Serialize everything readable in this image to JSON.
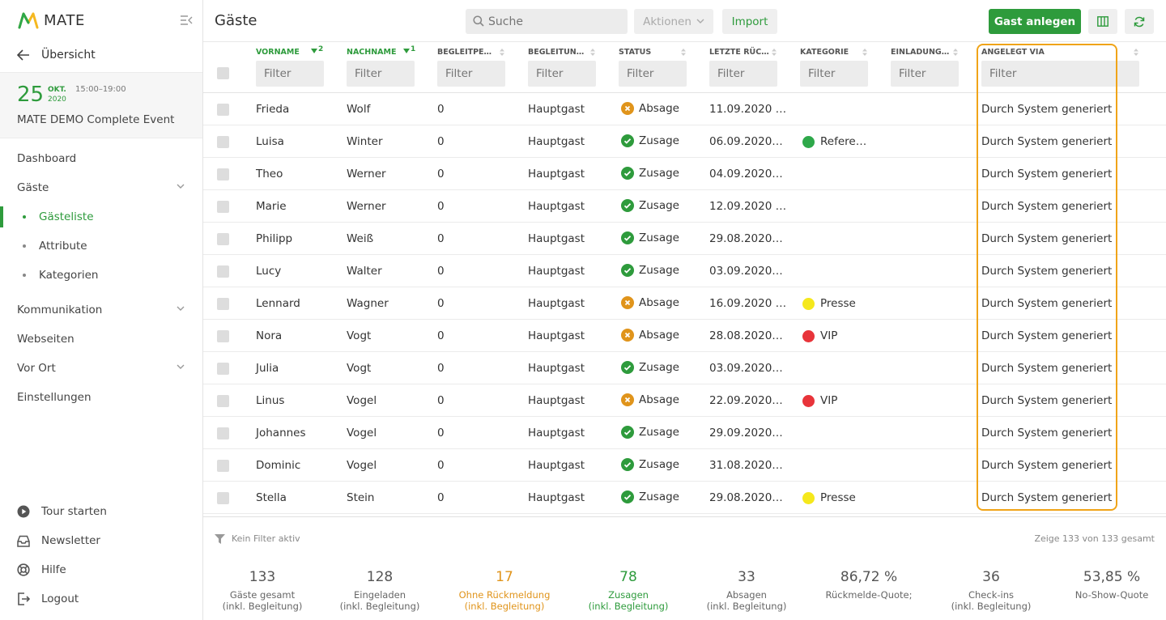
{
  "app": {
    "name": "MATE"
  },
  "sidebar": {
    "back_label": "Übersicht",
    "event": {
      "day": "25",
      "month": "OKT.",
      "year": "2020",
      "time": "15:00–19:00",
      "name": "MATE DEMO Complete Event"
    },
    "nav": [
      {
        "label": "Dashboard"
      },
      {
        "label": "Gäste"
      },
      {
        "label": "Gästeliste"
      },
      {
        "label": "Attribute"
      },
      {
        "label": "Kategorien"
      },
      {
        "label": "Kommunikation"
      },
      {
        "label": "Webseiten"
      },
      {
        "label": "Vor Ort"
      },
      {
        "label": "Einstellungen"
      }
    ],
    "footer": [
      {
        "label": "Tour starten",
        "icon": "play-icon"
      },
      {
        "label": "Newsletter",
        "icon": "inbox-icon"
      },
      {
        "label": "Hilfe",
        "icon": "lifebuoy-icon"
      },
      {
        "label": "Logout",
        "icon": "logout-icon"
      }
    ]
  },
  "header": {
    "title": "Gäste",
    "search_placeholder": "Suche",
    "actions_label": "Aktionen",
    "import_label": "Import",
    "add_guest_label": "Gast anlegen"
  },
  "table": {
    "filter_placeholder": "Filter",
    "columns": [
      {
        "label": "VORNAME",
        "sort_index": "2"
      },
      {
        "label": "NACHNAME",
        "sort_index": "1"
      },
      {
        "label": "BEGLEITPE…"
      },
      {
        "label": "BEGLEITUN…"
      },
      {
        "label": "STATUS"
      },
      {
        "label": "LETZTE RÜC…"
      },
      {
        "label": "KATEGORIE"
      },
      {
        "label": "EINLADUNG…"
      },
      {
        "label": "ANGELEGT VIA"
      }
    ],
    "rows": [
      {
        "vorname": "Frieda",
        "nachname": "Wolf",
        "begleitpersonen": "0",
        "begleitung": "Hauptgast",
        "status": "Absage",
        "letzte": "11.09.2020 …",
        "kategorie": "",
        "kat_color": "",
        "angelegt": "Durch System generiert"
      },
      {
        "vorname": "Luisa",
        "nachname": "Winter",
        "begleitpersonen": "0",
        "begleitung": "Hauptgast",
        "status": "Zusage",
        "letzte": "06.09.2020…",
        "kategorie": "Refere…",
        "kat_color": "#2ea84a",
        "angelegt": "Durch System generiert"
      },
      {
        "vorname": "Theo",
        "nachname": "Werner",
        "begleitpersonen": "0",
        "begleitung": "Hauptgast",
        "status": "Zusage",
        "letzte": "04.09.2020…",
        "kategorie": "",
        "kat_color": "",
        "angelegt": "Durch System generiert"
      },
      {
        "vorname": "Marie",
        "nachname": "Werner",
        "begleitpersonen": "0",
        "begleitung": "Hauptgast",
        "status": "Zusage",
        "letzte": "12.09.2020 …",
        "kategorie": "",
        "kat_color": "",
        "angelegt": "Durch System generiert"
      },
      {
        "vorname": "Philipp",
        "nachname": "Weiß",
        "begleitpersonen": "0",
        "begleitung": "Hauptgast",
        "status": "Zusage",
        "letzte": "29.08.2020…",
        "kategorie": "",
        "kat_color": "",
        "angelegt": "Durch System generiert"
      },
      {
        "vorname": "Lucy",
        "nachname": "Walter",
        "begleitpersonen": "0",
        "begleitung": "Hauptgast",
        "status": "Zusage",
        "letzte": "03.09.2020…",
        "kategorie": "",
        "kat_color": "",
        "angelegt": "Durch System generiert"
      },
      {
        "vorname": "Lennard",
        "nachname": "Wagner",
        "begleitpersonen": "0",
        "begleitung": "Hauptgast",
        "status": "Absage",
        "letzte": "16.09.2020 …",
        "kategorie": "Presse",
        "kat_color": "#f5e81c",
        "angelegt": "Durch System generiert"
      },
      {
        "vorname": "Nora",
        "nachname": "Vogt",
        "begleitpersonen": "0",
        "begleitung": "Hauptgast",
        "status": "Absage",
        "letzte": "28.08.2020…",
        "kategorie": "VIP",
        "kat_color": "#e8343a",
        "angelegt": "Durch System generiert"
      },
      {
        "vorname": "Julia",
        "nachname": "Vogt",
        "begleitpersonen": "0",
        "begleitung": "Hauptgast",
        "status": "Zusage",
        "letzte": "03.09.2020…",
        "kategorie": "",
        "kat_color": "",
        "angelegt": "Durch System generiert"
      },
      {
        "vorname": "Linus",
        "nachname": "Vogel",
        "begleitpersonen": "0",
        "begleitung": "Hauptgast",
        "status": "Absage",
        "letzte": "22.09.2020…",
        "kategorie": "VIP",
        "kat_color": "#e8343a",
        "angelegt": "Durch System generiert"
      },
      {
        "vorname": "Johannes",
        "nachname": "Vogel",
        "begleitpersonen": "0",
        "begleitung": "Hauptgast",
        "status": "Zusage",
        "letzte": "29.09.2020…",
        "kategorie": "",
        "kat_color": "",
        "angelegt": "Durch System generiert"
      },
      {
        "vorname": "Dominic",
        "nachname": "Vogel",
        "begleitpersonen": "0",
        "begleitung": "Hauptgast",
        "status": "Zusage",
        "letzte": "31.08.2020…",
        "kategorie": "",
        "kat_color": "",
        "angelegt": "Durch System generiert"
      },
      {
        "vorname": "Stella",
        "nachname": "Stein",
        "begleitpersonen": "0",
        "begleitung": "Hauptgast",
        "status": "Zusage",
        "letzte": "29.08.2020…",
        "kategorie": "Presse",
        "kat_color": "#f5e81c",
        "angelegt": "Durch System generiert"
      }
    ]
  },
  "footer": {
    "filter_status": "Kein Filter aktiv",
    "total_label": "Zeige 133 von 133 gesamt",
    "stats": [
      {
        "value": "133",
        "label1": "Gäste gesamt",
        "label2": "(inkl. Begleitung)",
        "tone": ""
      },
      {
        "value": "128",
        "label1": "Eingeladen",
        "label2": "(inkl. Begleitung)",
        "tone": ""
      },
      {
        "value": "17",
        "label1": "Ohne Rückmeldung",
        "label2": "(inkl. Begleitung)",
        "tone": "orange"
      },
      {
        "value": "78",
        "label1": "Zusagen",
        "label2": "(inkl. Begleitung)",
        "tone": "green"
      },
      {
        "value": "33",
        "label1": "Absagen",
        "label2": "(inkl. Begleitung)",
        "tone": ""
      },
      {
        "value": "86,72 %",
        "label1": "Rückmelde-Quote;",
        "label2": "",
        "tone": ""
      },
      {
        "value": "36",
        "label1": "Check-ins",
        "label2": "(inkl. Begleitung)",
        "tone": ""
      },
      {
        "value": "53,85 %",
        "label1": "No-Show-Quote",
        "label2": "",
        "tone": ""
      }
    ]
  },
  "colors": {
    "accent": "#2e9b3c",
    "highlight": "#f0a418",
    "absage": "#e0941b",
    "zusage": "#2e9b3c"
  }
}
